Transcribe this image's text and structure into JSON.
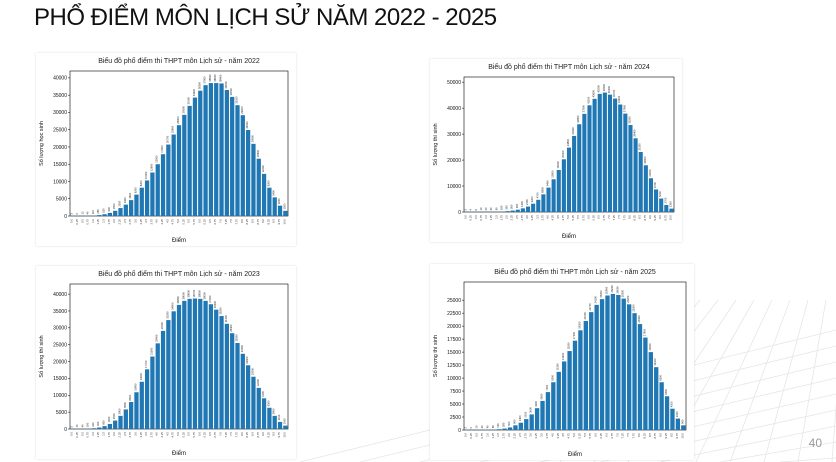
{
  "slide": {
    "title": "PHỔ ĐIỂM MÔN LỊCH SỬ NĂM 2022 - 2025",
    "page_number": "40"
  },
  "colors": {
    "bar": "#1f77b4",
    "axis": "#000000"
  },
  "chart_data": [
    {
      "type": "bar",
      "title": "Biểu đồ phổ điểm thi THPT môn Lịch sử - năm 2022",
      "xlabel": "Điểm",
      "ylabel": "Số lượng học sinh",
      "ylim": [
        0,
        42000
      ],
      "yticks": [
        0,
        5000,
        10000,
        15000,
        20000,
        25000,
        30000,
        35000,
        40000
      ],
      "categories": [
        "0.0",
        "0.25",
        "0.5",
        "0.75",
        "1.0",
        "1.25",
        "1.5",
        "1.75",
        "2.0",
        "2.25",
        "2.5",
        "2.75",
        "3.0",
        "3.25",
        "3.5",
        "3.75",
        "4.0",
        "4.25",
        "4.5",
        "4.75",
        "5.0",
        "5.25",
        "5.5",
        "5.75",
        "6.0",
        "6.25",
        "6.5",
        "6.75",
        "7.0",
        "7.25",
        "7.5",
        "7.75",
        "8.0",
        "8.25",
        "8.5",
        "8.75",
        "9.0",
        "9.25",
        "9.5",
        "9.75",
        "10.0"
      ],
      "values": [
        3,
        5,
        12,
        40,
        110,
        260,
        520,
        900,
        1500,
        2300,
        3300,
        4600,
        6200,
        8200,
        10300,
        12600,
        15000,
        17900,
        20700,
        23600,
        26300,
        29300,
        31900,
        34300,
        36300,
        37900,
        38500,
        38500,
        38400,
        36500,
        34500,
        32100,
        29200,
        24900,
        20900,
        16600,
        12200,
        8200,
        5400,
        3000,
        1500
      ],
      "grid": false,
      "legend": "none"
    },
    {
      "type": "bar",
      "title": "Biểu đồ phổ điểm thi THPT môn Lịch sử - năm 2024",
      "xlabel": "Điểm",
      "ylabel": "Số lượng thí sinh",
      "ylim": [
        0,
        52000
      ],
      "yticks": [
        0,
        10000,
        20000,
        30000,
        40000,
        50000
      ],
      "categories": [
        "0.0",
        "0.25",
        "0.5",
        "0.75",
        "1.0",
        "1.25",
        "1.5",
        "1.75",
        "2.0",
        "2.25",
        "2.5",
        "2.75",
        "3.0",
        "3.25",
        "3.5",
        "3.75",
        "4.0",
        "4.25",
        "4.5",
        "4.75",
        "5.0",
        "5.25",
        "5.5",
        "5.75",
        "6.0",
        "6.25",
        "6.5",
        "6.75",
        "7.0",
        "7.25",
        "7.5",
        "7.75",
        "8.0",
        "8.25",
        "8.5",
        "8.75",
        "9.0",
        "9.25",
        "9.5",
        "9.75",
        "10.0"
      ],
      "values": [
        2,
        4,
        6,
        10,
        20,
        40,
        90,
        180,
        330,
        560,
        900,
        1400,
        2100,
        3200,
        4700,
        6800,
        9400,
        12600,
        16200,
        20300,
        24800,
        29300,
        33800,
        37800,
        41100,
        43600,
        45500,
        46000,
        45200,
        43700,
        41400,
        37900,
        33500,
        28400,
        23100,
        18000,
        13000,
        8700,
        5200,
        2700,
        1300
      ],
      "grid": false,
      "legend": "none"
    },
    {
      "type": "bar",
      "title": "Biểu đồ phổ điểm thi THPT môn Lịch sử - năm 2023",
      "xlabel": "Điểm",
      "ylabel": "Số lượng thí sinh",
      "ylim": [
        0,
        43000
      ],
      "yticks": [
        0,
        5000,
        10000,
        15000,
        20000,
        25000,
        30000,
        35000,
        40000
      ],
      "categories": [
        "0.0",
        "0.25",
        "0.5",
        "0.75",
        "1.0",
        "1.25",
        "1.5",
        "1.75",
        "2.0",
        "2.25",
        "2.5",
        "2.75",
        "3.0",
        "3.25",
        "3.5",
        "3.75",
        "4.0",
        "4.25",
        "4.5",
        "4.75",
        "5.0",
        "5.25",
        "5.5",
        "5.75",
        "6.0",
        "6.25",
        "6.5",
        "6.75",
        "7.0",
        "7.25",
        "7.5",
        "7.75",
        "8.0",
        "8.25",
        "8.5",
        "8.75",
        "9.0",
        "9.25",
        "9.5",
        "9.75",
        "10.0"
      ],
      "values": [
        5,
        15,
        40,
        100,
        220,
        450,
        850,
        1500,
        2500,
        3900,
        5800,
        8000,
        10900,
        14000,
        17700,
        21500,
        25400,
        29100,
        32300,
        34900,
        36800,
        38000,
        38600,
        38700,
        38600,
        38000,
        37000,
        35400,
        33500,
        31200,
        28400,
        25500,
        22300,
        18900,
        15500,
        12200,
        9100,
        6300,
        3900,
        2100,
        1000
      ],
      "grid": false,
      "legend": "none"
    },
    {
      "type": "bar",
      "title": "Biểu đồ phổ điểm thi THPT môn Lịch sử - năm 2025",
      "xlabel": "Điểm",
      "ylabel": "Số lượng thí sinh",
      "ylim": [
        0,
        28500
      ],
      "yticks": [
        0,
        2500,
        5000,
        7500,
        10000,
        12500,
        15000,
        17500,
        20000,
        22500,
        25000
      ],
      "categories": [
        "0.0",
        "0.25",
        "0.5",
        "0.75",
        "1.0",
        "1.25",
        "1.5",
        "1.75",
        "2.0",
        "2.25",
        "2.5",
        "2.75",
        "3.0",
        "3.25",
        "3.5",
        "3.75",
        "4.0",
        "4.25",
        "4.5",
        "4.75",
        "5.0",
        "5.25",
        "5.5",
        "5.75",
        "6.0",
        "6.25",
        "6.5",
        "6.75",
        "7.0",
        "7.25",
        "7.5",
        "7.75",
        "8.0",
        "8.25",
        "8.5",
        "8.75",
        "9.0",
        "9.25",
        "9.5",
        "9.75",
        "10.0"
      ],
      "values": [
        2,
        5,
        10,
        20,
        40,
        80,
        150,
        280,
        500,
        900,
        1400,
        2100,
        3000,
        4200,
        5600,
        7300,
        9200,
        11200,
        13200,
        15200,
        17200,
        19200,
        21000,
        22700,
        24100,
        25200,
        25900,
        26200,
        26000,
        25300,
        24200,
        22500,
        20400,
        17800,
        15000,
        12100,
        9200,
        6500,
        4100,
        2200,
        900
      ],
      "grid": false,
      "legend": "none"
    }
  ]
}
